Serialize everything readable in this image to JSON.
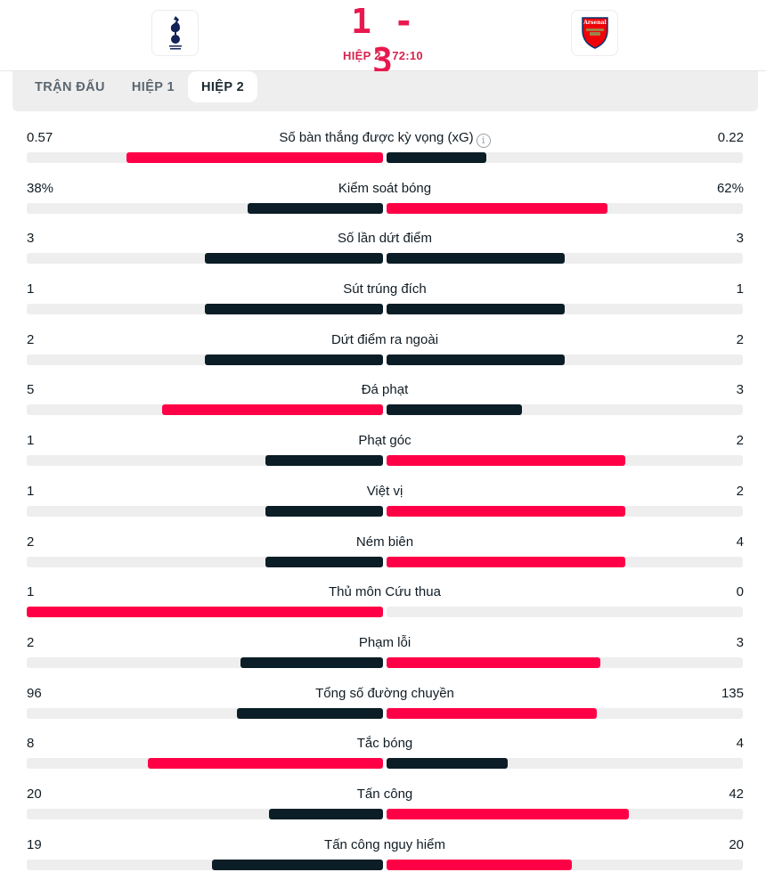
{
  "header": {
    "home_team": {
      "name": "Tottenham Hotspur",
      "crest_icon": "tottenham-crest-icon"
    },
    "away_team": {
      "name": "Arsenal",
      "crest_icon": "arsenal-crest-icon",
      "crest_text": "Arsenal"
    },
    "score": "1 - 3",
    "status": "HIỆP 2 · 72:10"
  },
  "tabs": [
    {
      "label": "TRẬN ĐẤU",
      "active": false
    },
    {
      "label": "HIỆP 1",
      "active": false
    },
    {
      "label": "HIỆP 2",
      "active": true
    }
  ],
  "colors": {
    "leader": "#ff0046",
    "trailer": "#0b1d26",
    "track": "#eeeeee",
    "score": "#e8194e"
  },
  "stats": [
    {
      "label": "Số bàn thắng được kỳ vọng (xG)",
      "home": "0.57",
      "away": "0.22",
      "home_pct": 72,
      "away_pct": 28,
      "home_color": "red",
      "away_color": "dark",
      "info": true
    },
    {
      "label": "Kiểm soát bóng",
      "home": "38%",
      "away": "62%",
      "home_pct": 38,
      "away_pct": 62,
      "home_color": "dark",
      "away_color": "red"
    },
    {
      "label": "Số lần dứt điểm",
      "home": "3",
      "away": "3",
      "home_pct": 50,
      "away_pct": 50,
      "home_color": "dark",
      "away_color": "dark"
    },
    {
      "label": "Sút trúng đích",
      "home": "1",
      "away": "1",
      "home_pct": 50,
      "away_pct": 50,
      "home_color": "dark",
      "away_color": "dark"
    },
    {
      "label": "Dứt điểm ra ngoài",
      "home": "2",
      "away": "2",
      "home_pct": 50,
      "away_pct": 50,
      "home_color": "dark",
      "away_color": "dark"
    },
    {
      "label": "Đá phạt",
      "home": "5",
      "away": "3",
      "home_pct": 62,
      "away_pct": 38,
      "home_color": "red",
      "away_color": "dark"
    },
    {
      "label": "Phạt góc",
      "home": "1",
      "away": "2",
      "home_pct": 33,
      "away_pct": 67,
      "home_color": "dark",
      "away_color": "red"
    },
    {
      "label": "Việt vị",
      "home": "1",
      "away": "2",
      "home_pct": 33,
      "away_pct": 67,
      "home_color": "dark",
      "away_color": "red"
    },
    {
      "label": "Ném biên",
      "home": "2",
      "away": "4",
      "home_pct": 33,
      "away_pct": 67,
      "home_color": "dark",
      "away_color": "red"
    },
    {
      "label": "Thủ môn Cứu thua",
      "home": "1",
      "away": "0",
      "home_pct": 100,
      "away_pct": 0,
      "home_color": "red",
      "away_color": "dark"
    },
    {
      "label": "Phạm lỗi",
      "home": "2",
      "away": "3",
      "home_pct": 40,
      "away_pct": 60,
      "home_color": "dark",
      "away_color": "red"
    },
    {
      "label": "Tổng số đường chuyền",
      "home": "96",
      "away": "135",
      "home_pct": 41,
      "away_pct": 59,
      "home_color": "dark",
      "away_color": "red"
    },
    {
      "label": "Tắc bóng",
      "home": "8",
      "away": "4",
      "home_pct": 66,
      "away_pct": 34,
      "home_color": "red",
      "away_color": "dark"
    },
    {
      "label": "Tấn công",
      "home": "20",
      "away": "42",
      "home_pct": 32,
      "away_pct": 68,
      "home_color": "dark",
      "away_color": "red"
    },
    {
      "label": "Tấn công nguy hiểm",
      "home": "19",
      "away": "20",
      "home_pct": 48,
      "away_pct": 52,
      "home_color": "dark",
      "away_color": "red"
    }
  ]
}
